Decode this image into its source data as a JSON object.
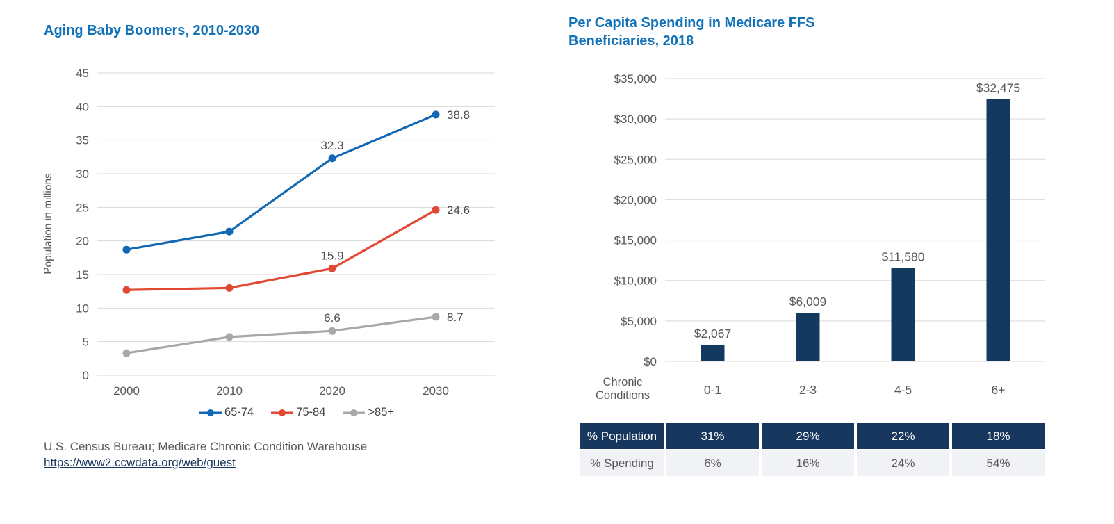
{
  "header": {
    "left_title": "Aging Baby Boomers, 2010-2030",
    "right_title": "Per Capita Spending in Medicare FFS Beneficiaries, 2018"
  },
  "source": {
    "text": "U.S. Census Bureau; Medicare Chronic Condition Warehouse",
    "link": "https://www2.ccwdata.org/web/guest"
  },
  "right_table": {
    "population_row": {
      "label": "% Population",
      "values": [
        "31%",
        "29%",
        "22%",
        "18%"
      ]
    },
    "spending_row": {
      "label": "% Spending",
      "values": [
        "6%",
        "16%",
        "24%",
        "54%"
      ]
    }
  },
  "colors": {
    "title_blue": "#1272B9",
    "navy": "#17375E",
    "bar_navy": "#14395E",
    "line_blue": "#1268B4",
    "line_red": "#E04A35",
    "line_gray": "#A8A8A8",
    "axis_text": "#595959",
    "data_label_text": "#4D4D4D",
    "gridline": "#D9D9D9",
    "table_body_bg": "#F1F2F6"
  },
  "chart_data": [
    {
      "type": "line",
      "title": "Aging Baby Boomers, 2010-2030",
      "ylabel": "Population in millions",
      "categories": [
        "2000",
        "2010",
        "2020",
        "2030"
      ],
      "ylim": [
        0,
        45
      ],
      "ytick_step": 5,
      "grid": true,
      "legend_position": "bottom",
      "series": [
        {
          "name": "65-74",
          "color": "#1268B4",
          "values": [
            18.7,
            21.4,
            32.3,
            38.8
          ],
          "point_labels": [
            null,
            null,
            "32.3",
            "38.8"
          ]
        },
        {
          "name": "75-84",
          "color": "#E04A35",
          "values": [
            12.7,
            13.0,
            15.9,
            24.6
          ],
          "point_labels": [
            null,
            null,
            "15.9",
            "24.6"
          ]
        },
        {
          "name": ">85+",
          "color": "#A8A8A8",
          "values": [
            3.3,
            5.7,
            6.6,
            8.7
          ],
          "point_labels": [
            null,
            null,
            "6.6",
            "8.7"
          ]
        }
      ]
    },
    {
      "type": "bar",
      "title": "Per Capita Spending in Medicare FFS Beneficiaries, 2018",
      "xlabel": "Chronic Conditions",
      "categories": [
        "0-1",
        "2-3",
        "4-5",
        "6+"
      ],
      "values": [
        2067,
        6009,
        11580,
        32475
      ],
      "value_labels": [
        "$2,067",
        "$6,009",
        "$11,580",
        "$32,475"
      ],
      "bar_color": "#14395E",
      "ylim": [
        0,
        35000
      ],
      "ytick_step": 5000,
      "ytick_prefix": "$",
      "grid": true
    }
  ]
}
